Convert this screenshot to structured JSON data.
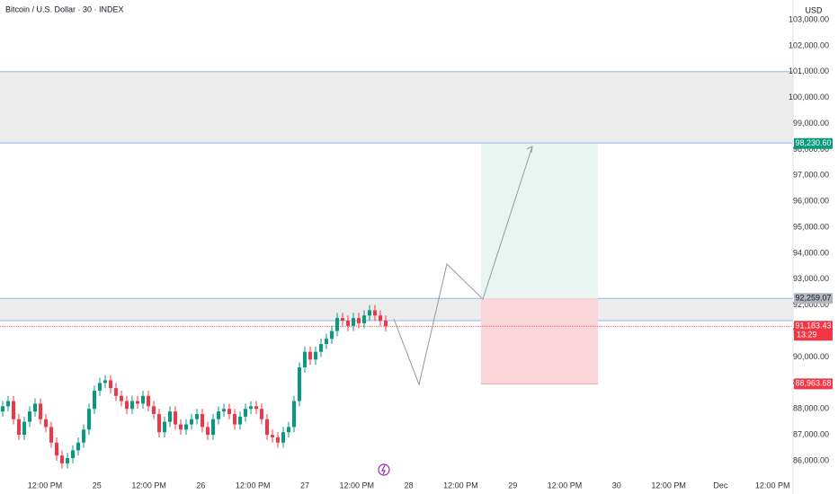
{
  "chart_data": {
    "type": "candlestick",
    "title": "Bitcoin / U.S. Dollar · 30 · INDEX",
    "currency": "USD",
    "x_labels": [
      "12:00 PM",
      "25",
      "12:00 PM",
      "26",
      "12:00 PM",
      "27",
      "12:00 PM",
      "28",
      "12:00 PM",
      "29",
      "12:00 PM",
      "30",
      "12:00 PM",
      "Dec",
      "12:00 PM"
    ],
    "up_color": "#089981",
    "down_color": "#f23645",
    "ylim": [
      85410,
      103762
    ],
    "grid": false,
    "yticks": [
      {
        "value": 86000,
        "label": "86,000.00"
      },
      {
        "value": 87000,
        "label": "87,000.00"
      },
      {
        "value": 88000,
        "label": "88,000.00"
      },
      {
        "value": 89000,
        "label": "89,000.00"
      },
      {
        "value": 90000,
        "label": "90,000.00"
      },
      {
        "value": 91000,
        "label": "91,000.00"
      },
      {
        "value": 92000,
        "label": "92,000.00"
      },
      {
        "value": 93000,
        "label": "93,000.00"
      },
      {
        "value": 94000,
        "label": "94,000.00"
      },
      {
        "value": 95000,
        "label": "95,000.00"
      },
      {
        "value": 96000,
        "label": "96,000.00"
      },
      {
        "value": 97000,
        "label": "97,000.00"
      },
      {
        "value": 98000,
        "label": "98,000.00"
      },
      {
        "value": 99000,
        "label": "99,000.00"
      },
      {
        "value": 100000,
        "label": "100,000.00"
      },
      {
        "value": 101000,
        "label": "101,000.00"
      },
      {
        "value": 102000,
        "label": "102,000.00"
      },
      {
        "value": 103000,
        "label": "103,000.00"
      }
    ],
    "candles": {
      "open": [
        87900,
        88100,
        88300,
        87600,
        87000,
        87500,
        87900,
        88200,
        87600,
        87300,
        86700,
        86200,
        85900,
        86100,
        86400,
        86700,
        87200,
        88000,
        88700,
        89000,
        89100,
        88800,
        88500,
        88300,
        88000,
        88300,
        88200,
        88500,
        88100,
        87800,
        87100,
        87500,
        87900,
        87400,
        87200,
        87400,
        87600,
        87800,
        87300,
        87000,
        87600,
        87900,
        88000,
        87800,
        87400,
        87700,
        88000,
        88100,
        88000,
        87600,
        87000,
        86900,
        86700,
        87100,
        87300,
        88300,
        89600,
        90200,
        89900,
        90200,
        90500,
        90700,
        91000,
        91500,
        91400,
        91200,
        91500,
        91300,
        91600,
        91800,
        91600,
        91400
      ],
      "high": [
        88300,
        88500,
        88500,
        87800,
        87700,
        88100,
        88400,
        88400,
        87800,
        87500,
        86900,
        86400,
        86300,
        86600,
        86900,
        87400,
        88200,
        88900,
        89200,
        89300,
        89300,
        89000,
        88700,
        88500,
        88500,
        88500,
        88700,
        88700,
        88300,
        88000,
        87700,
        88100,
        88100,
        87600,
        87600,
        87800,
        88000,
        88000,
        87500,
        87800,
        88100,
        88200,
        88200,
        88000,
        87900,
        88200,
        88300,
        88300,
        88200,
        87800,
        87200,
        87100,
        87300,
        87500,
        88500,
        89800,
        90400,
        90400,
        90400,
        90700,
        90900,
        91200,
        91700,
        91700,
        91600,
        91700,
        91700,
        91800,
        92000,
        92000,
        91800,
        91600
      ],
      "low": [
        87700,
        87900,
        87400,
        86800,
        86800,
        87300,
        87700,
        87400,
        87100,
        86500,
        86000,
        85700,
        85700,
        85900,
        86200,
        86500,
        87000,
        87800,
        88500,
        88800,
        88600,
        88300,
        88100,
        87800,
        87800,
        88000,
        88000,
        87900,
        87600,
        86900,
        86900,
        87300,
        87200,
        87000,
        87000,
        87200,
        87400,
        87100,
        86800,
        86800,
        87400,
        87700,
        87600,
        87200,
        87200,
        87500,
        87800,
        87800,
        87400,
        86800,
        86700,
        86500,
        86500,
        86900,
        87100,
        88100,
        89400,
        89700,
        89700,
        90000,
        90300,
        90500,
        90800,
        91200,
        91000,
        91000,
        91100,
        91100,
        91400,
        91400,
        91200,
        90980
      ],
      "close": [
        88100,
        88300,
        87600,
        87000,
        87500,
        87900,
        88200,
        87600,
        87300,
        86700,
        86200,
        85900,
        86100,
        86400,
        86700,
        87200,
        88000,
        88700,
        89000,
        89100,
        88800,
        88500,
        88300,
        88000,
        88300,
        88200,
        88500,
        88100,
        87800,
        87100,
        87500,
        87900,
        87400,
        87200,
        87400,
        87600,
        87800,
        87300,
        87000,
        87600,
        87900,
        88000,
        87800,
        87400,
        87700,
        88000,
        88100,
        88000,
        87600,
        87000,
        86900,
        86700,
        87100,
        87300,
        88300,
        89600,
        90200,
        89900,
        90200,
        90500,
        90700,
        91000,
        91500,
        91400,
        91200,
        91500,
        91300,
        91600,
        91800,
        91600,
        91400,
        91180
      ]
    },
    "zones": [
      {
        "top": 101000,
        "bottom": 98250,
        "color": "#ececec"
      },
      {
        "top": 92259.07,
        "bottom": 91400,
        "color": "#ececec"
      }
    ],
    "position": {
      "target": {
        "value": 98230.6,
        "label": "98,230.60",
        "color": "#089981",
        "fill": "#e8f5f1"
      },
      "entry": {
        "value": 92259.07,
        "label": "92,259.07",
        "color": "#b2b5be"
      },
      "stop": {
        "value": 88963.68,
        "label": "88,963.68",
        "color": "#f23645",
        "fill": "#fad6da"
      }
    },
    "last_price": {
      "value": 91183.43,
      "label": "91,183.43",
      "countdown": "13:29",
      "color": "#f23645"
    }
  }
}
